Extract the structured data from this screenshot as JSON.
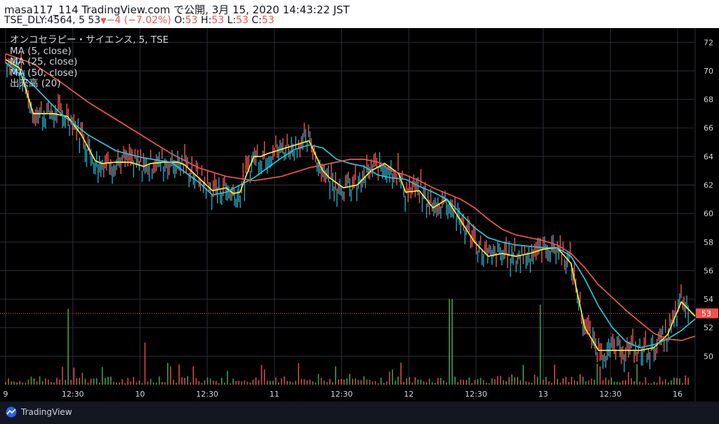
{
  "header": {
    "line": "masa117_114 TradingView.com で公開, 3月 15, 2020 14:43:22 JST",
    "symbol": "TSE_DLY:4564, 5 53",
    "change": "−4 (−7.02%)",
    "o_label": "O:",
    "o_value": "53",
    "h_label": "H:",
    "h_value": "53",
    "l_label": "L:",
    "l_value": "53",
    "c_label": "C:",
    "c_value": "53"
  },
  "legend": {
    "title": "オンコセラピー・サイエンス, 5, TSE",
    "ma5": "MA (5, close)",
    "ma25": "MA (25, close)",
    "ma50": "MA (50, close)",
    "volume": "出来高 (20)"
  },
  "footer": {
    "brand": "TradingView"
  },
  "colors": {
    "background": "#000000",
    "grid": "#2a2e39",
    "up": "#26a6c0",
    "down": "#ef5350",
    "ma5": "#ffeb3b",
    "ma25": "#26c6da",
    "ma50": "#ef5350",
    "vol_up": "#4caf50",
    "vol_down": "#ef5350",
    "price_label_bg": "#ef5350"
  },
  "chart_data": {
    "type": "line",
    "price_axis": {
      "min": 48,
      "max": 73,
      "ticks": [
        50,
        52,
        54,
        56,
        58,
        60,
        62,
        64,
        66,
        68,
        70,
        72
      ]
    },
    "time_ticks": [
      "9",
      "12:30",
      "10",
      "12:30",
      "11",
      "12:30",
      "12",
      "12:30",
      "13",
      "12:30",
      "16"
    ],
    "last_price": 53,
    "last_price_label": "53",
    "series": [
      {
        "name": "MA (5, close)",
        "x": [
          0,
          2,
          4,
          6,
          7,
          9,
          11,
          13,
          14,
          16,
          18,
          20,
          21,
          23,
          25,
          26,
          28,
          30,
          32,
          33,
          34,
          35,
          36,
          37,
          38,
          40,
          42,
          44,
          46,
          47,
          49,
          51,
          53,
          55,
          57,
          58,
          60,
          62,
          64,
          66,
          68,
          70,
          72,
          74,
          76,
          78,
          80,
          82,
          84,
          86,
          88,
          90,
          92,
          94,
          96,
          98,
          100
        ],
        "values": [
          70.8,
          70.2,
          67,
          67,
          67,
          66.8,
          65.5,
          63.7,
          63.5,
          63.6,
          63.6,
          63.3,
          63.5,
          63.6,
          63.6,
          63.4,
          62.5,
          61.6,
          61.8,
          61.4,
          61.5,
          62.8,
          64,
          64,
          64.2,
          64.5,
          64.8,
          65.1,
          63,
          62.5,
          61.8,
          62,
          63,
          63.5,
          62.8,
          61.5,
          61.6,
          60.4,
          61,
          59.5,
          58,
          57,
          57.2,
          57,
          57.2,
          57.5,
          57.6,
          56.5,
          52,
          50.4,
          50.4,
          50.4,
          50.4,
          50.6,
          51.5,
          53.8,
          52.8
        ]
      },
      {
        "name": "MA (25, close)",
        "x": [
          0,
          4,
          8,
          12,
          16,
          20,
          24,
          28,
          30,
          32,
          34,
          36,
          38,
          40,
          42,
          44,
          46,
          48,
          50,
          52,
          54,
          56,
          58,
          60,
          62,
          64,
          66,
          68,
          70,
          72,
          74,
          76,
          78,
          80,
          82,
          84,
          86,
          88,
          90,
          92,
          94,
          96,
          98,
          100
        ],
        "values": [
          70.6,
          69,
          67,
          65.5,
          64.4,
          63.9,
          63.6,
          62.2,
          61.3,
          61.5,
          62,
          62.5,
          63.2,
          63.9,
          64.5,
          64.8,
          64.6,
          63.8,
          63.5,
          63.3,
          62.7,
          62.5,
          62.4,
          61.9,
          61.5,
          61,
          60,
          59,
          58.3,
          58,
          57.8,
          57.7,
          57.6,
          57.6,
          57,
          55.4,
          53.5,
          52,
          51,
          50.6,
          50.8,
          51.2,
          51.8,
          52.6
        ]
      },
      {
        "name": "MA (50, close)",
        "x": [
          0,
          4,
          8,
          12,
          16,
          20,
          24,
          28,
          32,
          36,
          40,
          44,
          48,
          50,
          52,
          54,
          56,
          58,
          60,
          62,
          64,
          66,
          68,
          70,
          72,
          74,
          76,
          78,
          80,
          82,
          84,
          86,
          88,
          90,
          92,
          94,
          96,
          98,
          100
        ],
        "values": [
          71.2,
          70.5,
          69.2,
          67.8,
          66.6,
          65.4,
          64.2,
          63.2,
          62.6,
          62.3,
          62.6,
          63.2,
          63.6,
          63.8,
          63.8,
          63.6,
          63,
          62.7,
          62.3,
          61.8,
          61.4,
          61,
          60.4,
          59.6,
          58.9,
          58.5,
          58.3,
          58.1,
          57.8,
          57.2,
          56.2,
          55,
          54.1,
          53.2,
          52.4,
          51.6,
          51.2,
          51.1,
          51.4
        ]
      }
    ]
  }
}
